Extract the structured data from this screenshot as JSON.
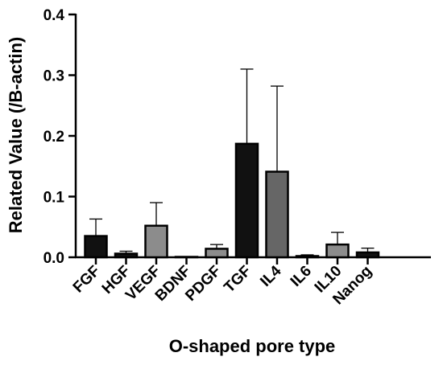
{
  "chart_data": {
    "type": "bar",
    "title": "",
    "xlabel": "O-shaped pore type",
    "ylabel": "Related Value (/B-actin)",
    "ylim": [
      0,
      0.4
    ],
    "yticks": [
      "0.0",
      "0.1",
      "0.2",
      "0.3",
      "0.4"
    ],
    "ytick_values": [
      0,
      0.1,
      0.2,
      0.3,
      0.4
    ],
    "grid": false,
    "legend": "none",
    "categories": [
      "FGF",
      "HGF",
      "VEGF",
      "BDNF",
      "PDGF",
      "TGF",
      "IL4",
      "IL6",
      "IL10",
      "Nanog"
    ],
    "values": [
      0.035,
      0.006,
      0.052,
      0.0,
      0.014,
      0.187,
      0.141,
      0.002,
      0.021,
      0.008
    ],
    "errors": [
      0.028,
      0.004,
      0.038,
      0.0,
      0.007,
      0.123,
      0.141,
      0.002,
      0.02,
      0.007
    ],
    "bar_colors": [
      "#111111",
      "#111111",
      "#8c8c8c",
      "#111111",
      "#8c8c8c",
      "#111111",
      "#666666",
      "#111111",
      "#8c8c8c",
      "#111111"
    ]
  }
}
